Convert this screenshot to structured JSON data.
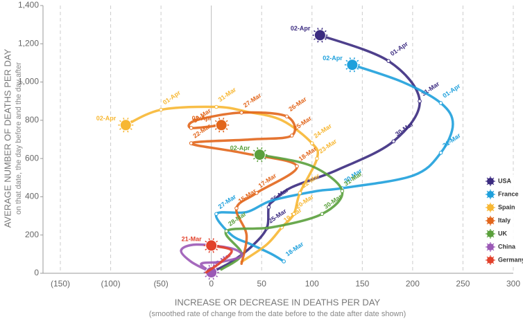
{
  "chart_data": {
    "type": "line",
    "y_title": "AVERAGE NUMBER OF DEATHS PER DAY",
    "y_subtitle": "on that date, the day before and the day after",
    "x_title": "INCREASE OR DECREASE IN DEATHS PER DAY",
    "x_subtitle": "(smoothed rate of change from the date before to the date after date shown)",
    "xlim": [
      -150,
      300
    ],
    "xticks": [
      {
        "value": -150,
        "label": "(150)"
      },
      {
        "value": -100,
        "label": "(100)"
      },
      {
        "value": -50,
        "label": "(50)"
      },
      0,
      50,
      100,
      150,
      200,
      250,
      300
    ],
    "ylim": [
      0,
      1400
    ],
    "yticks": [
      0,
      200,
      400,
      600,
      800,
      {
        "value": 1000,
        "label": "1,000"
      },
      {
        "value": 1200,
        "label": "1,200"
      },
      {
        "value": 1400,
        "label": "1,400"
      }
    ],
    "grid": true,
    "legend": "lower right",
    "series": [
      {
        "name": "USA",
        "color": "#3b2b80",
        "x": [
          2,
          20,
          40,
          55,
          57,
          62,
          80,
          125,
          181,
          207,
          176,
          108
        ],
        "values": [
          10,
          60,
          140,
          235,
          345,
          380,
          450,
          540,
          690,
          900,
          1110,
          1245
        ],
        "labels": [
          null,
          null,
          null,
          "25-Mar",
          "26-Mar",
          null,
          null,
          null,
          "30-Mar",
          "31-Mar",
          "01-Apr",
          "02-Apr"
        ]
      },
      {
        "name": "France",
        "color": "#1ea0dc",
        "x": [
          72,
          60,
          40,
          20,
          5,
          35,
          60,
          105,
          130,
          200,
          228,
          240,
          228,
          190,
          140
        ],
        "values": [
          62,
          100,
          150,
          200,
          310,
          320,
          380,
          430,
          445,
          510,
          630,
          780,
          890,
          1000,
          1090
        ],
        "labels": [
          "18-Mar",
          null,
          null,
          null,
          "27-Mar",
          null,
          null,
          null,
          "30-Mar",
          null,
          "31-Mar",
          null,
          "01-Apr",
          null,
          "02-Apr"
        ]
      },
      {
        "name": "Spain",
        "color": "#f7b733",
        "x": [
          30,
          55,
          70,
          82,
          88,
          105,
          100,
          70,
          35,
          5,
          -50,
          -85
        ],
        "values": [
          60,
          150,
          240,
          310,
          420,
          600,
          680,
          800,
          845,
          870,
          855,
          775
        ],
        "labels": [
          null,
          null,
          "19-Mar",
          "20-Mar",
          "22-Mar",
          "23-Mar",
          "24-Mar",
          null,
          null,
          "31-Mar",
          "01-Apr",
          "02-Apr"
        ]
      },
      {
        "name": "Italy",
        "color": "#e2661c",
        "x": [
          30,
          35,
          25,
          45,
          85,
          30,
          -20,
          40,
          80,
          75,
          30,
          -15,
          -20,
          10
        ],
        "values": [
          50,
          200,
          340,
          420,
          560,
          630,
          680,
          700,
          720,
          820,
          840,
          800,
          760,
          775
        ],
        "labels": [
          null,
          null,
          "15-Mar",
          "17-Mar",
          "18-Mar",
          null,
          "22-Mar",
          null,
          "25-Mar",
          "26-Mar",
          "27-Mar",
          null,
          "30-Mar",
          "02-Apr"
        ]
      },
      {
        "name": "UK",
        "color": "#5aa03c",
        "x": [
          10,
          30,
          15,
          60,
          110,
          130,
          100,
          48
        ],
        "values": [
          20,
          100,
          220,
          240,
          310,
          430,
          560,
          620
        ],
        "labels": [
          null,
          null,
          "28-Mar",
          null,
          "30-Mar",
          "31-Mar",
          null,
          "02-Apr"
        ]
      },
      {
        "name": "China",
        "color": "#9b59b6",
        "x": [
          0,
          -20,
          -30,
          -15,
          20,
          30,
          10,
          -10,
          0
        ],
        "values": [
          5,
          60,
          120,
          150,
          130,
          90,
          60,
          50,
          5
        ],
        "labels": [
          "09-Mar",
          null,
          null,
          null,
          null,
          null,
          null,
          null,
          null
        ]
      },
      {
        "name": "Germany",
        "color": "#e2412b",
        "x": [
          -5,
          10,
          20,
          0
        ],
        "values": [
          5,
          60,
          120,
          145
        ],
        "labels": [
          null,
          null,
          null,
          "21-Mar"
        ]
      }
    ]
  }
}
